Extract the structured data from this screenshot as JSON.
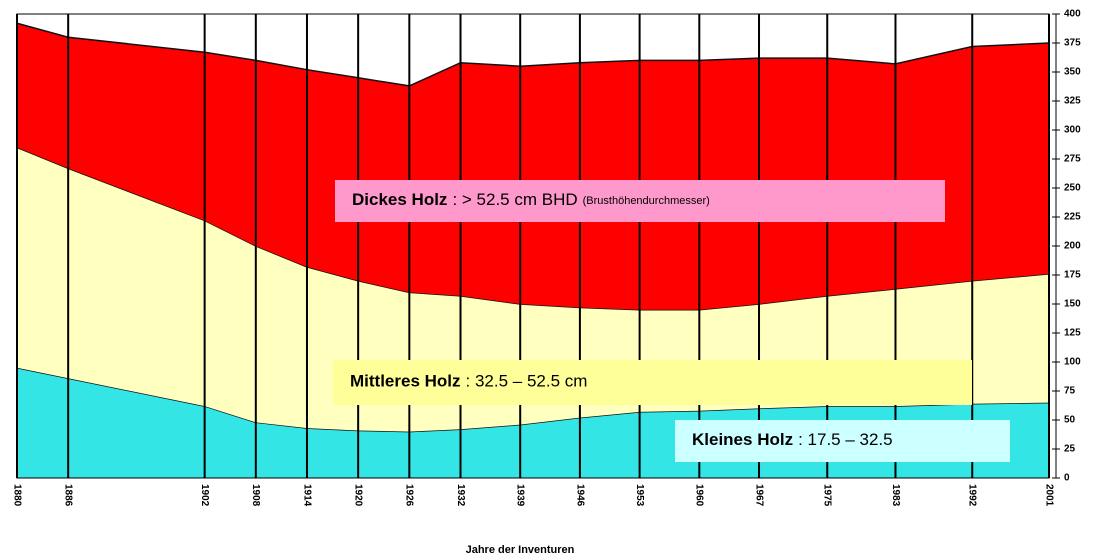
{
  "chart_data": {
    "type": "stacked-area",
    "x_label": "Jahre der Inventuren",
    "x": [
      1880,
      1886,
      1902,
      1908,
      1914,
      1920,
      1926,
      1932,
      1939,
      1946,
      1953,
      1960,
      1967,
      1975,
      1983,
      1992,
      2001
    ],
    "xlim": [
      1880,
      2001
    ],
    "series": [
      {
        "name": "Kleines Holz",
        "annotation": ": 17.5 – 32.5",
        "color": "#33e5e5",
        "label_color": "#ccffff",
        "values": [
          95,
          86,
          62,
          48,
          43,
          41,
          40,
          42,
          46,
          52,
          57,
          58,
          60,
          62,
          62,
          64,
          65
        ]
      },
      {
        "name": "Mittleres Holz",
        "annotation": ": 32.5 – 52.5 cm",
        "color": "#ffffc0",
        "label_color": "#ffff99",
        "values": [
          190,
          181,
          160,
          152,
          139,
          129,
          120,
          115,
          104,
          95,
          88,
          87,
          90,
          95,
          101,
          106,
          111
        ]
      },
      {
        "name": "Dickes Holz",
        "annotation": ": > 52.5 cm BHD",
        "note": "(Brusthöhendurchmesser)",
        "color": "#ff0000",
        "label_color": "#ff99cc",
        "values": [
          107,
          113,
          145,
          160,
          170,
          175,
          178,
          201,
          205,
          211,
          215,
          215,
          212,
          205,
          194,
          202,
          199
        ]
      }
    ],
    "ylim": [
      0,
      400
    ],
    "yticks": [
      0,
      25,
      50,
      75,
      100,
      125,
      150,
      175,
      200,
      225,
      250,
      275,
      300,
      325,
      350,
      375,
      400
    ]
  }
}
